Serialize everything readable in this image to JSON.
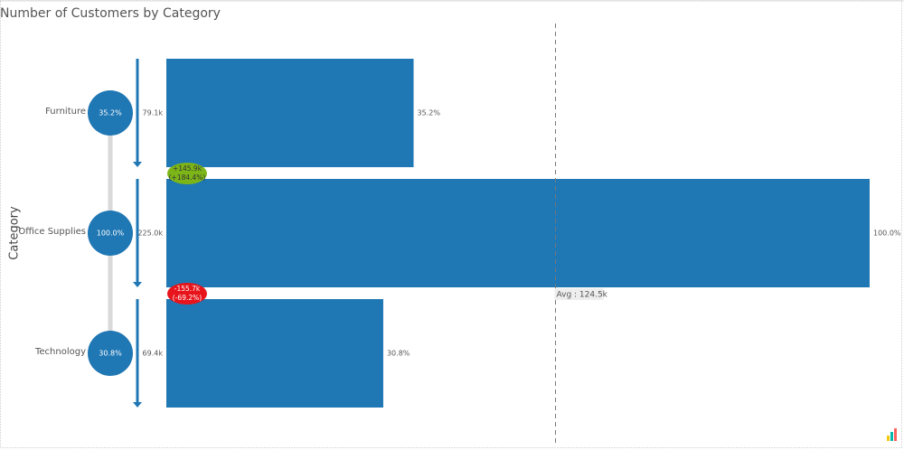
{
  "chart_data": {
    "type": "bar",
    "title": "Number of Customers by Category",
    "y_axis_label": "Category",
    "categories": [
      "Furniture",
      "Office Supplies",
      "Technology"
    ],
    "values": [
      79100,
      225000,
      69400
    ],
    "value_labels": [
      "79.1k",
      "225.0k",
      "69.4k"
    ],
    "percent_values": [
      35.2,
      100,
      30.8
    ],
    "percent_labels": [
      "35.2%",
      "100.0%",
      "30.8%"
    ],
    "differences": [
      {
        "change": "+145.9k",
        "percent": "(+184.4%)",
        "color": "#7cb518"
      },
      {
        "change": "-155.7k",
        "percent": "(-69.2%)",
        "color": "#e8141b"
      }
    ],
    "average": {
      "value": 124500,
      "label": "Avg : 124.5k"
    },
    "color": "#1f77b4",
    "xlim": [
      0,
      225000
    ]
  }
}
